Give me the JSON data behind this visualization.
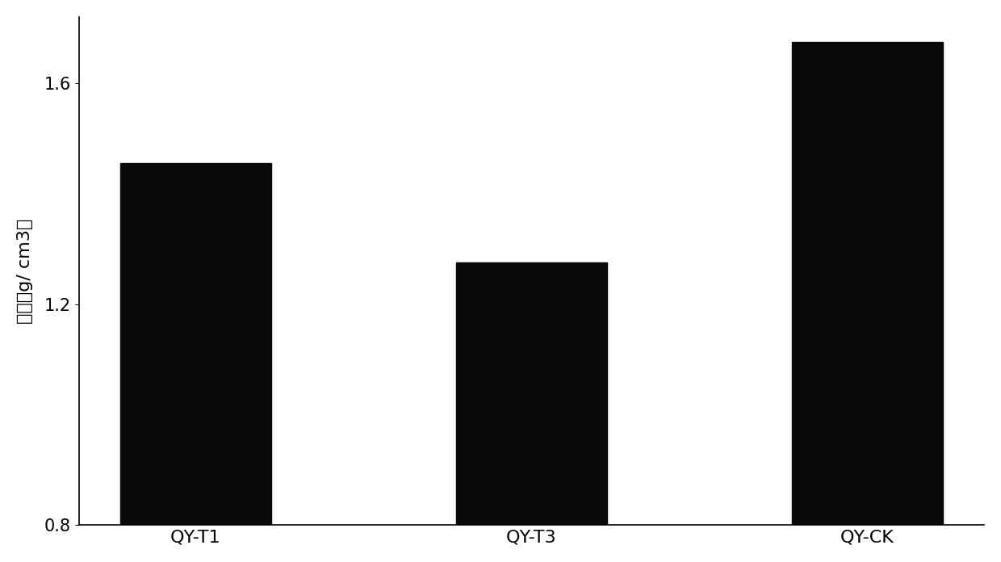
{
  "categories": [
    "QY-T1",
    "QY-T3",
    "QY-CK"
  ],
  "values": [
    1.455,
    1.275,
    1.675
  ],
  "bar_color": "#0a0a0a",
  "bar_width": 0.45,
  "ylabel": "容重（g/ cm3）",
  "ylim": [
    0.8,
    1.72
  ],
  "yticks": [
    0.8,
    1.2,
    1.6
  ],
  "xlabel_fontsize": 16,
  "ylabel_fontsize": 16,
  "tick_fontsize": 15,
  "background_color": "#ffffff",
  "spine_color": "#000000",
  "figure_width": 12.4,
  "figure_height": 6.96,
  "dpi": 100
}
